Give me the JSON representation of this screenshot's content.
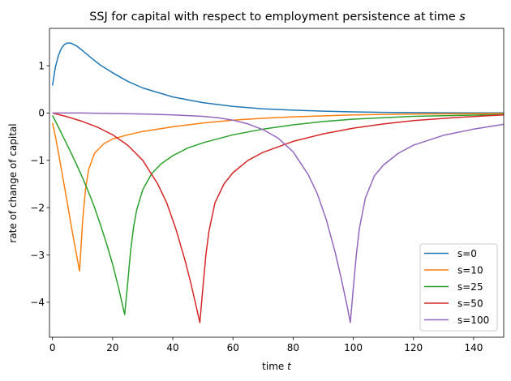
{
  "chart_data": {
    "type": "line",
    "title": "SSJ for capital with respect to employment persistence at time s",
    "title_parts": {
      "text": "SSJ for capital with respect to employment persistence at time ",
      "italic": "s"
    },
    "xlabel": "time t",
    "xlabel_parts": {
      "text": "time ",
      "italic": "t"
    },
    "ylabel": "rate of change of capital",
    "xlim": [
      -1,
      150
    ],
    "ylim": [
      -4.74,
      1.79
    ],
    "xticks": [
      0,
      20,
      40,
      60,
      80,
      100,
      120,
      140
    ],
    "yticks": [
      1,
      0,
      -1,
      -2,
      -3,
      -4
    ],
    "ytick_labels": [
      "1",
      "0",
      "−1",
      "−2",
      "−3",
      "−4"
    ],
    "grid": false,
    "legend_position": "lower right",
    "series": [
      {
        "name": "s=0",
        "color": "#1f77b4",
        "x": [
          0,
          1,
          2,
          3,
          4,
          5,
          6,
          8,
          10,
          13,
          16,
          20,
          25,
          30,
          40,
          50,
          60,
          70,
          80,
          90,
          100,
          110,
          120,
          130,
          140,
          150
        ],
        "y": [
          0.58,
          0.98,
          1.22,
          1.37,
          1.45,
          1.48,
          1.48,
          1.42,
          1.32,
          1.16,
          1.01,
          0.85,
          0.67,
          0.53,
          0.34,
          0.22,
          0.14,
          0.09,
          0.06,
          0.04,
          0.025,
          0.015,
          0.01,
          0.006,
          0.004,
          0.003
        ]
      },
      {
        "name": "s=10",
        "color": "#ff7f0e",
        "x": [
          0,
          1,
          2,
          3,
          4,
          5,
          6,
          7,
          8,
          9,
          10,
          11,
          12,
          14,
          17,
          20,
          25,
          30,
          40,
          50,
          60,
          70,
          80,
          100,
          120,
          150
        ],
        "y": [
          -0.21,
          -0.5,
          -0.85,
          -1.2,
          -1.56,
          -1.93,
          -2.3,
          -2.66,
          -3.0,
          -3.34,
          -2.3,
          -1.6,
          -1.2,
          -0.85,
          -0.65,
          -0.55,
          -0.46,
          -0.39,
          -0.29,
          -0.21,
          -0.15,
          -0.11,
          -0.08,
          -0.04,
          -0.02,
          -0.01
        ]
      },
      {
        "name": "s=25",
        "color": "#2ca02c",
        "x": [
          0,
          2,
          4,
          6,
          8,
          10,
          12,
          14,
          16,
          18,
          20,
          22,
          24,
          25,
          26,
          27,
          28,
          30,
          33,
          36,
          40,
          45,
          50,
          60,
          70,
          80,
          90,
          100,
          120,
          150
        ],
        "y": [
          -0.05,
          -0.3,
          -0.56,
          -0.82,
          -1.09,
          -1.37,
          -1.67,
          -2.0,
          -2.37,
          -2.77,
          -3.2,
          -3.7,
          -4.26,
          -3.6,
          -2.9,
          -2.4,
          -2.05,
          -1.62,
          -1.28,
          -1.08,
          -0.9,
          -0.74,
          -0.63,
          -0.46,
          -0.34,
          -0.25,
          -0.18,
          -0.13,
          -0.07,
          -0.03
        ]
      },
      {
        "name": "s=50",
        "color": "#d62728",
        "x": [
          0,
          5,
          10,
          15,
          20,
          25,
          30,
          35,
          38,
          41,
          44,
          46,
          48,
          49,
          50,
          51,
          52,
          54,
          57,
          60,
          65,
          70,
          80,
          90,
          100,
          110,
          120,
          135,
          150
        ],
        "y": [
          0,
          -0.08,
          -0.18,
          -0.3,
          -0.46,
          -0.68,
          -1.0,
          -1.5,
          -1.9,
          -2.45,
          -3.1,
          -3.6,
          -4.15,
          -4.43,
          -3.7,
          -3.0,
          -2.5,
          -1.9,
          -1.5,
          -1.26,
          -1.0,
          -0.83,
          -0.6,
          -0.44,
          -0.32,
          -0.23,
          -0.16,
          -0.09,
          -0.04
        ]
      },
      {
        "name": "s=100",
        "color": "#9467bd",
        "x": [
          0,
          10,
          20,
          30,
          40,
          50,
          55,
          60,
          65,
          70,
          75,
          80,
          85,
          88,
          91,
          94,
          96,
          98,
          99,
          100,
          101,
          102,
          104,
          107,
          110,
          115,
          120,
          130,
          140,
          150
        ],
        "y": [
          0,
          0,
          -0.01,
          -0.02,
          -0.04,
          -0.07,
          -0.1,
          -0.15,
          -0.23,
          -0.35,
          -0.53,
          -0.82,
          -1.3,
          -1.7,
          -2.25,
          -2.95,
          -3.5,
          -4.1,
          -4.43,
          -3.7,
          -3.0,
          -2.45,
          -1.8,
          -1.33,
          -1.1,
          -0.85,
          -0.68,
          -0.47,
          -0.34,
          -0.24
        ]
      }
    ]
  },
  "colors": {
    "axes": "#000000",
    "legend_border": "#cccccc",
    "background": "#ffffff"
  }
}
